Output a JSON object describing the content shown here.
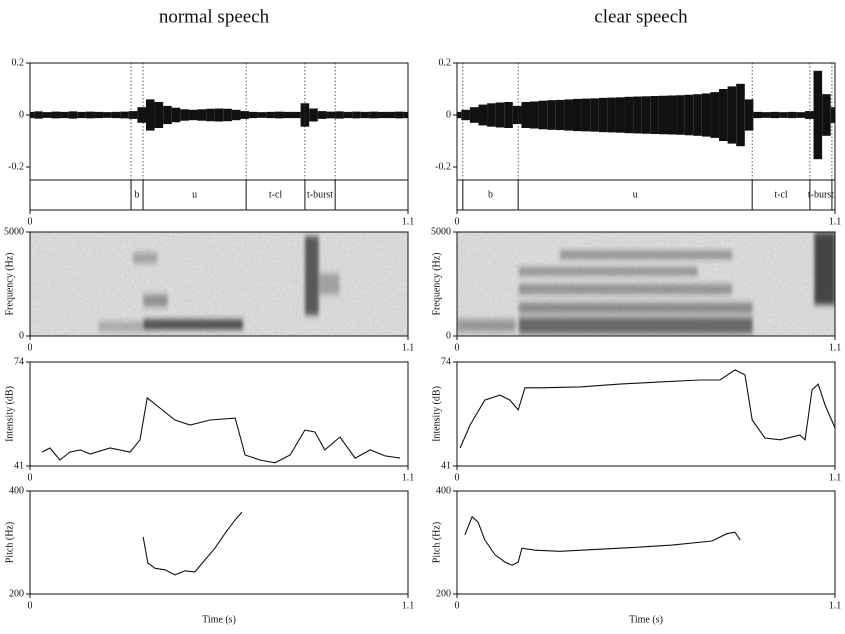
{
  "chart_data": [
    {
      "type": "waveform",
      "title": "normal speech",
      "xlim": [
        0,
        1.1
      ],
      "xticks": [
        0,
        1.1
      ],
      "ylim": [
        -0.25,
        0.2
      ],
      "yticks": [
        0.2,
        0,
        -0.2
      ],
      "color": "#111111",
      "x": [
        0,
        0.025,
        0.05,
        0.075,
        0.1,
        0.125,
        0.15,
        0.175,
        0.2,
        0.225,
        0.25,
        0.275,
        0.3,
        0.325,
        0.35,
        0.375,
        0.4,
        0.425,
        0.45,
        0.475,
        0.5,
        0.525,
        0.55,
        0.575,
        0.6,
        0.625,
        0.65,
        0.675,
        0.7,
        0.725,
        0.75,
        0.775,
        0.8,
        0.825,
        0.85,
        0.875,
        0.9,
        0.925,
        0.95,
        0.975,
        1,
        1.025,
        1.05,
        1.075,
        1.1
      ],
      "values": [
        0.012,
        0.014,
        0.011,
        0.013,
        0.012,
        0.014,
        0.012,
        0.013,
        0.012,
        0.011,
        0.012,
        0.013,
        0.015,
        0.03,
        0.06,
        0.05,
        0.035,
        0.028,
        0.022,
        0.02,
        0.022,
        0.024,
        0.025,
        0.024,
        0.02,
        0.015,
        0.012,
        0.011,
        0.012,
        0.013,
        0.012,
        0.012,
        0.045,
        0.025,
        0.015,
        0.013,
        0.014,
        0.012,
        0.013,
        0.012,
        0.013,
        0.012,
        0.012,
        0.013,
        0.012
      ],
      "tier": {
        "boundaries": [
          0.294,
          0.329,
          0.629,
          0.8,
          0.888
        ],
        "labels": [
          "b",
          "u",
          "t-cl",
          "t-burst"
        ]
      }
    },
    {
      "type": "spectrogram",
      "ylabel": "Frequency (Hz)",
      "xlim": [
        0,
        1.1
      ],
      "xticks": [
        0,
        1.1
      ],
      "ylim": [
        0,
        5000
      ],
      "yticks": [
        0,
        5000
      ],
      "bands": [
        {
          "t0": 0.33,
          "t1": 0.62,
          "f0": 300,
          "f1": 800,
          "level": 0.75
        },
        {
          "t0": 0.33,
          "t1": 0.4,
          "f0": 1400,
          "f1": 2000,
          "level": 0.4
        },
        {
          "t0": 0.3,
          "t1": 0.37,
          "f0": 3500,
          "f1": 4000,
          "level": 0.3
        },
        {
          "t0": 0.2,
          "t1": 0.33,
          "f0": 200,
          "f1": 700,
          "level": 0.25
        },
        {
          "t0": 0.8,
          "t1": 0.84,
          "f0": 1000,
          "f1": 4800,
          "level": 0.7
        },
        {
          "t0": 0.84,
          "t1": 0.9,
          "f0": 2000,
          "f1": 3000,
          "level": 0.3
        }
      ]
    },
    {
      "type": "line",
      "ylabel": "Intensity (dB)",
      "xlim": [
        0,
        1.1
      ],
      "xticks": [
        0,
        1.1
      ],
      "ylim": [
        41,
        74
      ],
      "yticks": [
        41,
        74
      ],
      "color": "#111111",
      "x": [
        0.035,
        0.058,
        0.087,
        0.116,
        0.146,
        0.175,
        0.233,
        0.291,
        0.32,
        0.341,
        0.378,
        0.422,
        0.466,
        0.524,
        0.597,
        0.626,
        0.669,
        0.713,
        0.757,
        0.8,
        0.829,
        0.858,
        0.902,
        0.946,
        0.99,
        1.033,
        1.077
      ],
      "values": [
        45.4,
        46.7,
        42.9,
        45.4,
        46.1,
        44.8,
        46.7,
        45.4,
        49.3,
        62.6,
        59.4,
        55.6,
        54.0,
        55.6,
        56.2,
        44.5,
        42.9,
        42.0,
        44.5,
        52.4,
        51.8,
        46.1,
        50.2,
        43.5,
        46.1,
        44.2,
        43.5
      ]
    },
    {
      "type": "line",
      "ylabel": "Pitch (Hz)",
      "xlabel": "Time (s)",
      "xlim": [
        0,
        1.1
      ],
      "xticks": [
        0,
        1.1
      ],
      "ylim": [
        200,
        400
      ],
      "yticks": [
        200,
        400
      ],
      "color": "#111111",
      "x": [
        0.329,
        0.343,
        0.364,
        0.393,
        0.422,
        0.451,
        0.48,
        0.509,
        0.538,
        0.568,
        0.597,
        0.617
      ],
      "values": [
        311,
        260,
        250,
        247,
        237,
        245,
        243,
        266,
        289,
        318,
        344,
        359
      ]
    },
    {
      "type": "waveform",
      "title": "clear speech",
      "xlim": [
        0,
        1.1
      ],
      "xticks": [
        0,
        1.1
      ],
      "ylim": [
        -0.25,
        0.2
      ],
      "yticks": [
        0.2,
        0,
        -0.2
      ],
      "color": "#111111",
      "x": [
        0,
        0.025,
        0.05,
        0.075,
        0.1,
        0.125,
        0.15,
        0.175,
        0.2,
        0.225,
        0.25,
        0.275,
        0.3,
        0.325,
        0.35,
        0.375,
        0.4,
        0.425,
        0.45,
        0.475,
        0.5,
        0.525,
        0.55,
        0.575,
        0.6,
        0.625,
        0.65,
        0.675,
        0.7,
        0.725,
        0.75,
        0.775,
        0.8,
        0.825,
        0.85,
        0.875,
        0.9,
        0.925,
        0.95,
        0.975,
        1,
        1.025,
        1.05,
        1.075,
        1.1
      ],
      "values": [
        0.012,
        0.02,
        0.03,
        0.04,
        0.045,
        0.048,
        0.05,
        0.035,
        0.05,
        0.052,
        0.055,
        0.057,
        0.058,
        0.06,
        0.062,
        0.063,
        0.064,
        0.066,
        0.067,
        0.068,
        0.07,
        0.071,
        0.072,
        0.073,
        0.074,
        0.075,
        0.076,
        0.078,
        0.08,
        0.083,
        0.088,
        0.1,
        0.11,
        0.12,
        0.06,
        0.012,
        0.011,
        0.012,
        0.011,
        0.012,
        0.011,
        0.015,
        0.17,
        0.08,
        0.03
      ],
      "tier": {
        "boundaries": [
          0.017,
          0.178,
          0.859,
          1.027,
          1.091
        ],
        "labels": [
          "b",
          "u",
          "t-cl",
          "t-burst"
        ]
      }
    },
    {
      "type": "spectrogram",
      "ylabel": "Frequency (Hz)",
      "xlim": [
        0,
        1.1
      ],
      "xticks": [
        0,
        1.1
      ],
      "ylim": [
        0,
        5000
      ],
      "yticks": [
        0,
        5000
      ],
      "bands": [
        {
          "t0": 0,
          "t1": 0.17,
          "f0": 200,
          "f1": 800,
          "level": 0.35
        },
        {
          "t0": 0.18,
          "t1": 0.86,
          "f0": 100,
          "f1": 900,
          "level": 0.6
        },
        {
          "t0": 0.18,
          "t1": 0.86,
          "f0": 1100,
          "f1": 1600,
          "level": 0.45
        },
        {
          "t0": 0.18,
          "t1": 0.8,
          "f0": 2000,
          "f1": 2500,
          "level": 0.4
        },
        {
          "t0": 0.18,
          "t1": 0.7,
          "f0": 2900,
          "f1": 3300,
          "level": 0.4
        },
        {
          "t0": 0.3,
          "t1": 0.8,
          "f0": 3700,
          "f1": 4100,
          "level": 0.4
        },
        {
          "t0": 1.04,
          "t1": 1.1,
          "f0": 1500,
          "f1": 5000,
          "level": 0.8
        }
      ]
    },
    {
      "type": "line",
      "ylabel": "Intensity (dB)",
      "xlim": [
        0,
        1.1
      ],
      "xticks": [
        0,
        1.1
      ],
      "ylim": [
        41,
        74
      ],
      "yticks": [
        41,
        74
      ],
      "color": "#111111",
      "x": [
        0.009,
        0.038,
        0.081,
        0.125,
        0.154,
        0.178,
        0.198,
        0.242,
        0.358,
        0.474,
        0.591,
        0.707,
        0.765,
        0.809,
        0.838,
        0.859,
        0.896,
        0.94,
        0.998,
        1.013,
        1.033,
        1.051,
        1.071,
        1.1
      ],
      "values": [
        46.7,
        54.0,
        61.9,
        63.5,
        61.9,
        58.8,
        65.8,
        65.8,
        66.1,
        67.0,
        67.7,
        68.3,
        68.3,
        71.5,
        69.9,
        55.6,
        49.9,
        49.3,
        50.8,
        49.3,
        65.1,
        67.0,
        60.4,
        53.1
      ]
    },
    {
      "type": "line",
      "ylabel": "Pitch (Hz)",
      "xlabel": "Time (s)",
      "xlim": [
        0,
        1.1
      ],
      "xticks": [
        0,
        1.1
      ],
      "ylim": [
        200,
        400
      ],
      "yticks": [
        200,
        400
      ],
      "color": "#111111",
      "x": [
        0.023,
        0.044,
        0.061,
        0.081,
        0.111,
        0.14,
        0.16,
        0.178,
        0.189,
        0.227,
        0.3,
        0.416,
        0.533,
        0.626,
        0.742,
        0.785,
        0.809,
        0.824
      ],
      "values": [
        315,
        350,
        340,
        305,
        276,
        262,
        256,
        262,
        289,
        285,
        283,
        287,
        291,
        295,
        303,
        317,
        320,
        305
      ]
    }
  ]
}
